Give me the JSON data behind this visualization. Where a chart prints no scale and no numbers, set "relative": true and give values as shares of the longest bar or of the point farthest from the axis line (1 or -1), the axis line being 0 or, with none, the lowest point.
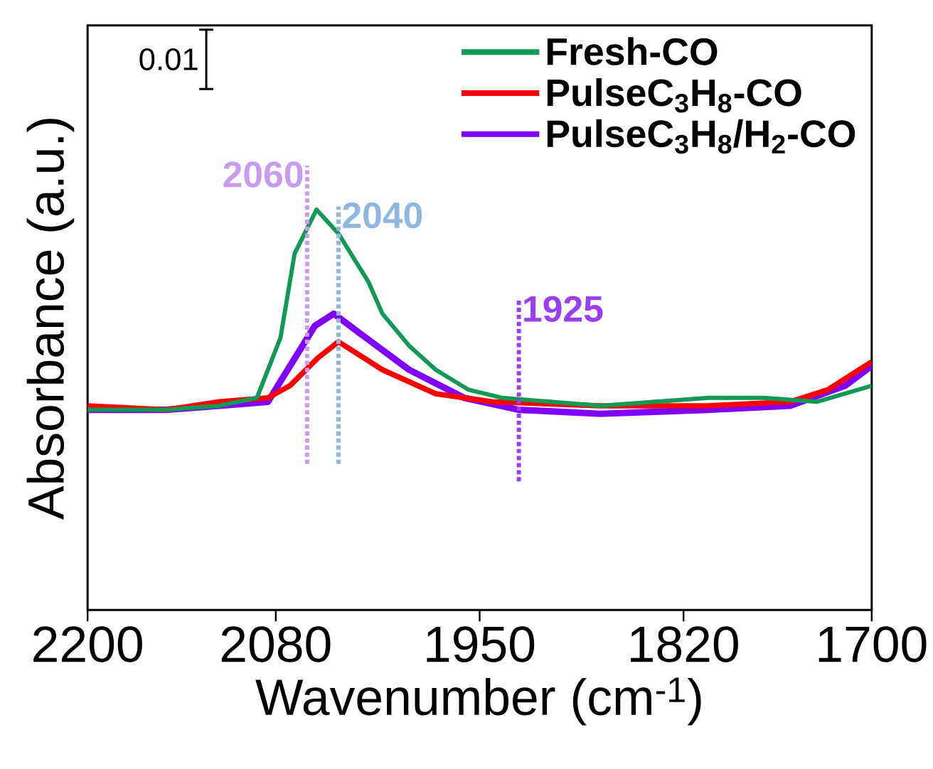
{
  "chart_data": {
    "type": "line",
    "relative": true,
    "xlabel": "Wavenumber (cm$^{-1}$)",
    "ylabel": "Absorbance (a.u.)",
    "xlim": [
      2200,
      1700
    ],
    "xticks": [
      2200,
      2080,
      1950,
      1820,
      1700
    ],
    "legend": "top right",
    "annotations": [
      "0.01"
    ],
    "ref_lines": [
      {
        "axis": "x",
        "value": 2060,
        "label": "2060",
        "color": "#c89af0",
        "line_style": "dotted"
      },
      {
        "axis": "x",
        "value": 2040,
        "label": "2040",
        "color": "#8fb8e0",
        "line_style": "dotted"
      },
      {
        "axis": "x",
        "value": 1925,
        "label": "1925",
        "color": "#9b3df0",
        "line_style": "dotted"
      }
    ],
    "series": [
      {
        "name": "**Fresh-CO**",
        "color": "#119955",
        "x": [
          2200,
          2150,
          2116,
          2092,
          2077,
          2068,
          2054,
          2040,
          2021,
          2012,
          1995,
          1978,
          1957,
          1936,
          1873,
          1804,
          1769,
          1735,
          1700
        ],
        "values": [
          0.5,
          0.5,
          0.51,
          0.53,
          0.68,
          0.89,
          1.0,
          0.94,
          0.82,
          0.74,
          0.66,
          0.6,
          0.55,
          0.53,
          0.51,
          0.53,
          0.53,
          0.52,
          0.56
        ]
      },
      {
        "name": "**PulseC$_{3}$H$_{8}$-CO**",
        "color": "#ff0000",
        "x": [
          2200,
          2150,
          2116,
          2085,
          2071,
          2053,
          2040,
          2012,
          1978,
          1942,
          1873,
          1804,
          1752,
          1728,
          1700
        ],
        "values": [
          0.51,
          0.5,
          0.52,
          0.53,
          0.56,
          0.63,
          0.67,
          0.6,
          0.54,
          0.52,
          0.51,
          0.51,
          0.52,
          0.55,
          0.62
        ]
      },
      {
        "name": "**PulseC$_{3}$H$_{8}$/H$_{2}$-CO**",
        "color": "#8000ff",
        "x": [
          2200,
          2150,
          2116,
          2085,
          2074,
          2055,
          2043,
          2026,
          1995,
          1960,
          1925,
          1873,
          1804,
          1752,
          1717,
          1700
        ],
        "values": [
          0.5,
          0.5,
          0.51,
          0.52,
          0.59,
          0.71,
          0.74,
          0.69,
          0.6,
          0.53,
          0.5,
          0.49,
          0.5,
          0.51,
          0.56,
          0.61
        ]
      }
    ]
  }
}
